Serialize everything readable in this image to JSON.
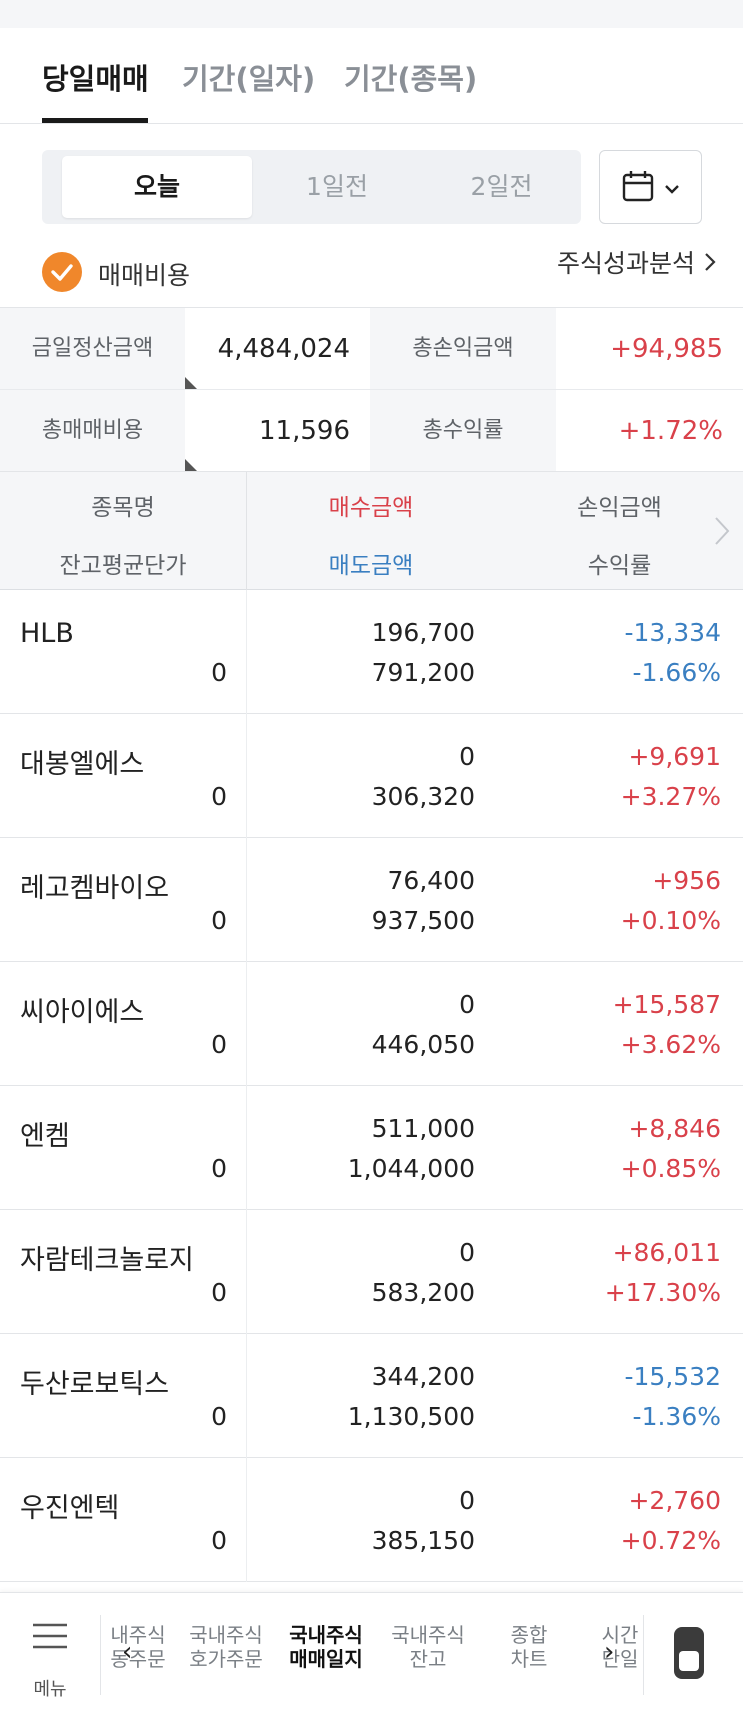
{
  "main_tabs": [
    {
      "label": "당일매매",
      "active": true
    },
    {
      "label": "기간(일자)",
      "active": false
    },
    {
      "label": "기간(종목)",
      "active": false
    }
  ],
  "day_selector": {
    "options": [
      "오늘",
      "1일전",
      "2일전"
    ],
    "selected": "오늘"
  },
  "icons": {
    "calendar": "calendar-icon",
    "dropdown": "chevron-down-icon",
    "check": "check-icon",
    "link_arrow": "chevron-right-icon"
  },
  "fee_toggle": {
    "label": "매매비용",
    "checked": true
  },
  "analysis_link": "주식성과분석",
  "summary": {
    "settlement_label": "금일정산금액",
    "settlement_value": "4,484,024",
    "total_pl_label": "총손익금액",
    "total_pl_value": "+94,985",
    "total_fee_label": "총매매비용",
    "total_fee_value": "11,596",
    "total_rate_label": "총수익률",
    "total_rate_value": "+1.72%"
  },
  "table": {
    "headers": {
      "name": "종목명",
      "avg_price": "잔고평균단가",
      "buy_amount": "매수금액",
      "sell_amount": "매도금액",
      "pl_amount": "손익금액",
      "rate": "수익률"
    },
    "rows": [
      {
        "name": "HLB",
        "avg": "0",
        "buy": "196,700",
        "sell": "791,200",
        "pl": "-13,334",
        "rate": "-1.66%"
      },
      {
        "name": "대봉엘에스",
        "avg": "0",
        "buy": "0",
        "sell": "306,320",
        "pl": "+9,691",
        "rate": "+3.27%"
      },
      {
        "name": "레고켐바이오",
        "avg": "0",
        "buy": "76,400",
        "sell": "937,500",
        "pl": "+956",
        "rate": "+0.10%"
      },
      {
        "name": "씨아이에스",
        "avg": "0",
        "buy": "0",
        "sell": "446,050",
        "pl": "+15,587",
        "rate": "+3.62%"
      },
      {
        "name": "엔켐",
        "avg": "0",
        "buy": "511,000",
        "sell": "1,044,000",
        "pl": "+8,846",
        "rate": "+0.85%"
      },
      {
        "name": "자람테크놀로지",
        "avg": "0",
        "buy": "0",
        "sell": "583,200",
        "pl": "+86,011",
        "rate": "+17.30%"
      },
      {
        "name": "두산로보틱스",
        "avg": "0",
        "buy": "344,200",
        "sell": "1,130,500",
        "pl": "-15,532",
        "rate": "-1.36%"
      },
      {
        "name": "우진엔텍",
        "avg": "0",
        "buy": "0",
        "sell": "385,150",
        "pl": "+2,760",
        "rate": "+0.72%"
      }
    ]
  },
  "bottom_nav": {
    "menu_label": "메뉴",
    "items": [
      {
        "line1": "내주식",
        "line2": "동주문",
        "active": false
      },
      {
        "line1": "국내주식",
        "line2": "호가주문",
        "active": false
      },
      {
        "line1": "국내주식",
        "line2": "매매일지",
        "active": true
      },
      {
        "line1": "국내주식",
        "line2": "잔고",
        "active": false
      },
      {
        "line1": "종합",
        "line2": "차트",
        "active": false
      },
      {
        "line1": "시간",
        "line2": "단일",
        "active": false
      }
    ]
  },
  "colors": {
    "accent_orange": "#f0872b",
    "profit_red": "#d9414a",
    "loss_blue": "#3a7fc1"
  }
}
